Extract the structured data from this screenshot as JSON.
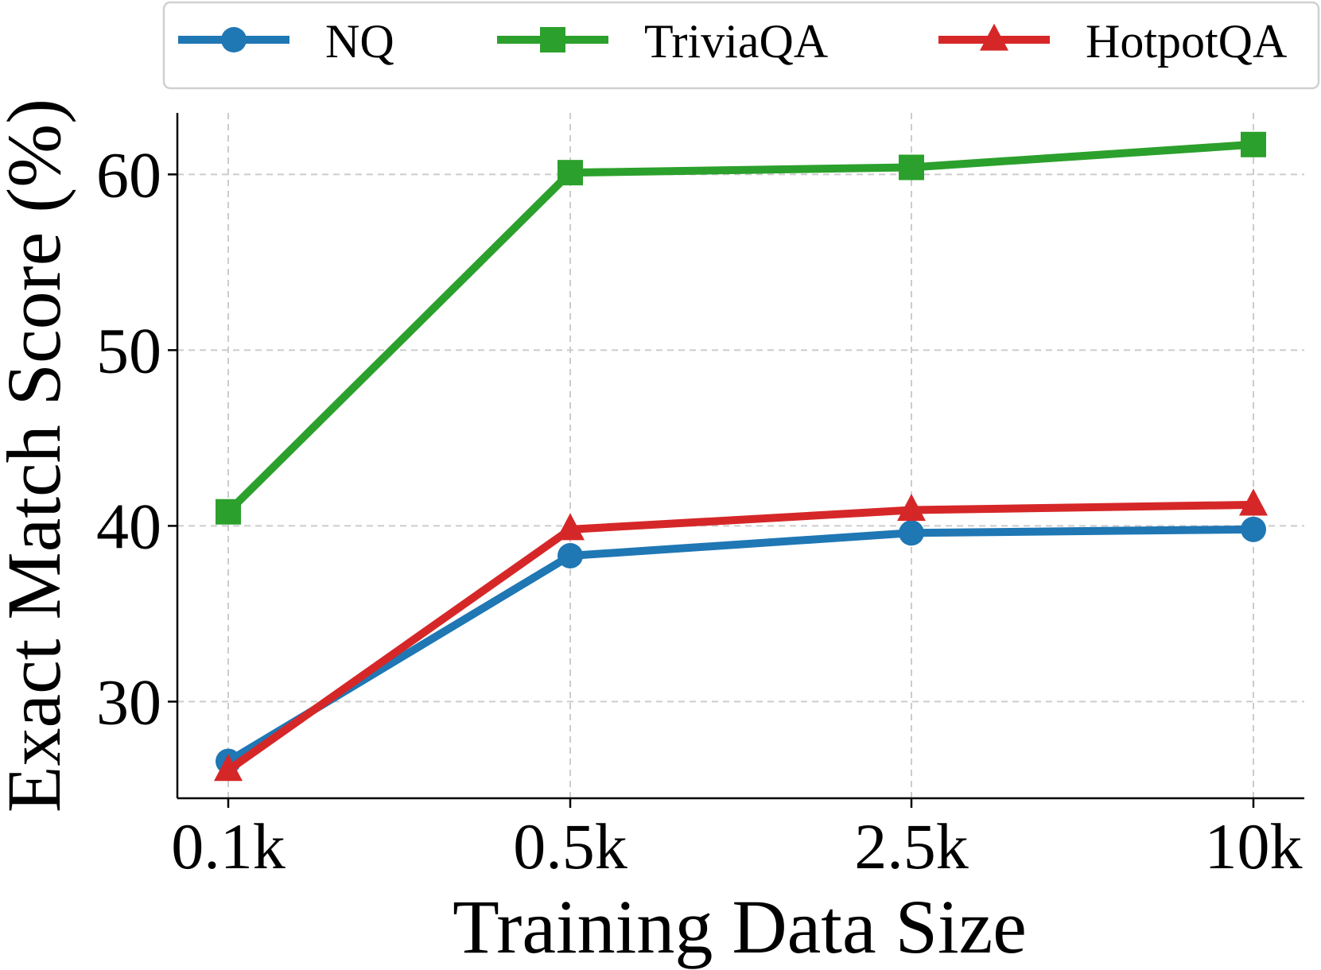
{
  "chart_data": {
    "type": "line",
    "title": "",
    "xlabel": "Training Data Size",
    "ylabel": "Exact Match Score (%)",
    "categories": [
      "0.1k",
      "0.5k",
      "2.5k",
      "10k"
    ],
    "ylim": [
      24.5,
      63.5
    ],
    "yticks": [
      30,
      40,
      50,
      60
    ],
    "grid": true,
    "legend_position": "top",
    "series": [
      {
        "name": "NQ",
        "values": [
          26.6,
          38.3,
          39.6,
          39.8
        ],
        "color": "#1f77b4",
        "marker": "circle"
      },
      {
        "name": "TriviaQA",
        "values": [
          40.8,
          60.1,
          60.4,
          61.7
        ],
        "color": "#2ca02c",
        "marker": "square"
      },
      {
        "name": "HotpotQA",
        "values": [
          26.1,
          39.8,
          40.9,
          41.2
        ],
        "color": "#d62728",
        "marker": "triangle"
      }
    ]
  }
}
